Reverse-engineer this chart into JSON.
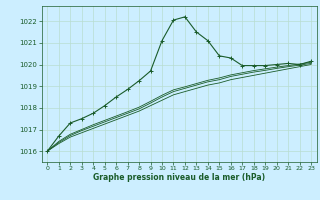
{
  "title": "Graphe pression niveau de la mer (hPa)",
  "bg_color": "#cceeff",
  "grid_color": "#b8ddd0",
  "line_color": "#1a5c2a",
  "xlim": [
    -0.5,
    23.5
  ],
  "ylim": [
    1015.5,
    1022.7
  ],
  "xticks": [
    0,
    1,
    2,
    3,
    4,
    5,
    6,
    7,
    8,
    9,
    10,
    11,
    12,
    13,
    14,
    15,
    16,
    17,
    18,
    19,
    20,
    21,
    22,
    23
  ],
  "yticks": [
    1016,
    1017,
    1018,
    1019,
    1020,
    1021,
    1022
  ],
  "main_x": [
    0,
    1,
    2,
    3,
    4,
    5,
    6,
    7,
    8,
    9,
    10,
    11,
    12,
    13,
    14,
    15,
    16,
    17,
    18,
    19,
    20,
    21,
    22,
    23
  ],
  "main_y": [
    1016.0,
    1016.7,
    1017.3,
    1017.5,
    1017.75,
    1018.1,
    1018.5,
    1018.85,
    1019.25,
    1019.7,
    1021.1,
    1022.05,
    1022.2,
    1021.5,
    1021.1,
    1020.4,
    1020.3,
    1019.95,
    1019.95,
    1019.95,
    1020.0,
    1020.05,
    1020.0,
    1020.15
  ],
  "band_lines": [
    [
      1016.0,
      1016.35,
      1016.65,
      1016.85,
      1017.05,
      1017.25,
      1017.45,
      1017.65,
      1017.85,
      1018.1,
      1018.35,
      1018.6,
      1018.75,
      1018.9,
      1019.05,
      1019.15,
      1019.3,
      1019.4,
      1019.5,
      1019.6,
      1019.7,
      1019.8,
      1019.9,
      1020.0
    ],
    [
      1016.0,
      1016.4,
      1016.72,
      1016.95,
      1017.15,
      1017.35,
      1017.55,
      1017.75,
      1017.95,
      1018.22,
      1018.5,
      1018.75,
      1018.9,
      1019.05,
      1019.2,
      1019.3,
      1019.45,
      1019.55,
      1019.65,
      1019.73,
      1019.82,
      1019.9,
      1019.97,
      1020.05
    ],
    [
      1016.0,
      1016.45,
      1016.78,
      1017.0,
      1017.22,
      1017.42,
      1017.62,
      1017.82,
      1018.03,
      1018.3,
      1018.58,
      1018.83,
      1018.97,
      1019.12,
      1019.27,
      1019.38,
      1019.52,
      1019.62,
      1019.72,
      1019.8,
      1019.88,
      1019.95,
      1020.02,
      1020.1
    ]
  ]
}
